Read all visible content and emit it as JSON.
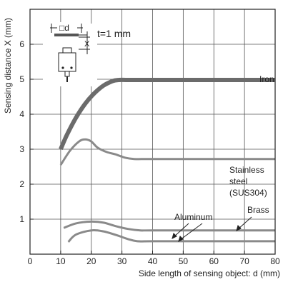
{
  "chart_data": {
    "type": "line",
    "title": "",
    "xlabel": "Side length of sensing object: d (mm)",
    "ylabel": "Sensing distance X (mm)",
    "xlim": [
      0,
      80
    ],
    "ylim": [
      0,
      7
    ],
    "xticks": [
      0,
      10,
      20,
      30,
      40,
      50,
      60,
      70,
      80
    ],
    "xticklabels": [
      "0",
      "10",
      "20",
      "30",
      "40",
      "50",
      "60",
      "70",
      "80"
    ],
    "yticks": [
      1,
      2,
      3,
      4,
      5,
      6
    ],
    "yticklabels": [
      "1",
      "2",
      "3",
      "4",
      "5",
      "6"
    ],
    "grid": true,
    "legend": "none",
    "series": [
      {
        "name": "Iron",
        "color": "#6b6b6b",
        "x": [
          10,
          12,
          15,
          18,
          21,
          24,
          27,
          29,
          32,
          40,
          60,
          80
        ],
        "y": [
          3.0,
          3.4,
          3.9,
          4.3,
          4.6,
          4.82,
          4.95,
          4.98,
          4.98,
          4.98,
          4.98,
          4.98
        ]
      },
      {
        "name": "Stainless steel (SUS304)",
        "color": "#8a8a8a",
        "x": [
          10,
          13,
          16,
          18,
          20,
          22,
          25,
          28,
          31,
          34,
          40,
          60,
          80
        ],
        "y": [
          2.55,
          2.95,
          3.22,
          3.28,
          3.22,
          3.05,
          2.92,
          2.85,
          2.76,
          2.72,
          2.72,
          2.72,
          2.72
        ]
      },
      {
        "name": "Brass",
        "color": "#8a8a8a",
        "x": [
          11,
          15,
          20,
          24,
          28,
          32,
          36,
          40,
          60,
          80
        ],
        "y": [
          0.75,
          0.88,
          0.93,
          0.9,
          0.8,
          0.72,
          0.68,
          0.68,
          0.68,
          0.68
        ]
      },
      {
        "name": "Aluminum",
        "color": "#8a8a8a",
        "x": [
          12.5,
          15,
          20,
          24,
          28,
          32,
          35,
          40,
          60,
          80
        ],
        "y": [
          0.35,
          0.56,
          0.68,
          0.65,
          0.55,
          0.43,
          0.37,
          0.37,
          0.37,
          0.37
        ]
      }
    ],
    "annotations": {
      "iron": "Iron",
      "stainless_1": "Stainless",
      "stainless_2": "steel",
      "stainless_3": "(SUS304)",
      "brass": "Brass",
      "aluminum": "Aluminum",
      "inset_d": "□d",
      "inset_x": "X",
      "inset_t": "t=1 mm"
    }
  }
}
